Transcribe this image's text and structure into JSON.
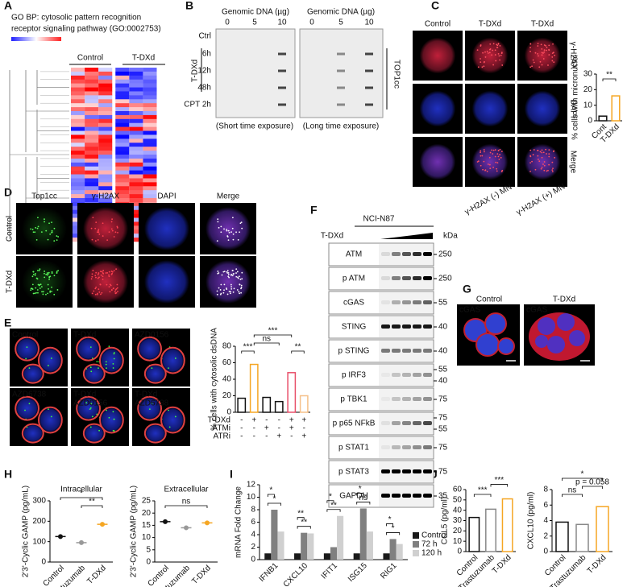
{
  "panel_A": {
    "label": "A",
    "title_lines": [
      "GO BP: cytosolic pattern recognition",
      "receptor signaling pathway (GO:0002753)"
    ],
    "groups": [
      "Control",
      "T-DXd"
    ]
  },
  "panel_B": {
    "label": "B",
    "headers": [
      "Genomic DNA (µg)",
      "Genomic DNA (µg)"
    ],
    "lanes": [
      0,
      5,
      10,
      0,
      5,
      10
    ],
    "rows": [
      "Ctrl",
      "6h",
      "12h",
      "48h",
      "CPT 2h"
    ],
    "group": "T-DXd",
    "target": "TOP1cc",
    "captions": [
      "(Short time exposure)",
      "(Long time exposure)"
    ]
  },
  "panel_C": {
    "label": "C",
    "columns": [
      "Control",
      "T-DXd",
      "T-DXd"
    ],
    "channels": [
      "γ-H2AX",
      "DAPI",
      "Merge"
    ],
    "subcaptions": [
      "γ-H2AX (-) MN",
      "γ-H2AX (+) MN"
    ]
  },
  "panel_D": {
    "label": "D",
    "channels": [
      "Top1cc",
      "γ-H2AX",
      "DAPI",
      "Merge"
    ],
    "rows": [
      "Control",
      "T-DXd"
    ]
  },
  "panel_E": {
    "label": "E",
    "images": [
      [
        "Control"
      ],
      [
        "T-DXd"
      ],
      [
        "AZD0156"
      ],
      [
        "AZD6738"
      ],
      [
        "T-DXd",
        "AZD0156"
      ],
      [
        "T-DXd",
        "AZD6738"
      ]
    ]
  },
  "panel_F": {
    "label": "F",
    "cell_line": "NCI-N87",
    "treatment": "T-DXd",
    "unit": "kDa",
    "rows": [
      {
        "name": "ATM",
        "markers": [
          250
        ]
      },
      {
        "name": "p ATM",
        "markers": [
          250
        ]
      },
      {
        "name": "cGAS",
        "markers": [
          55
        ]
      },
      {
        "name": "STING",
        "markers": [
          40
        ]
      },
      {
        "name": "p STING",
        "markers": [
          40
        ]
      },
      {
        "name": "p IRF3",
        "markers": [
          55,
          40
        ]
      },
      {
        "name": "p TBK1",
        "markers": [
          75
        ]
      },
      {
        "name": "p p65 NFkB",
        "markers": [
          75,
          55
        ]
      },
      {
        "name": "p STAT1",
        "markers": [
          75
        ]
      },
      {
        "name": "p STAT3",
        "markers": [
          75
        ]
      },
      {
        "name": "GAPDH",
        "markers": [
          35
        ]
      }
    ]
  },
  "panel_G": {
    "label": "G",
    "columns": [
      "Control",
      "T-DXd"
    ],
    "stain": "cGAS"
  },
  "panel_H": {
    "label": "H"
  },
  "panel_I": {
    "label": "I"
  },
  "panel_J": {
    "label": "J"
  },
  "chart_data": [
    {
      "type": "bar",
      "ylabel": "% cells with micronuclei",
      "categories": [
        "Cont",
        "T-DXd"
      ],
      "values": [
        3,
        16
      ],
      "colors": [
        "#111111",
        "#f5a623"
      ],
      "ylim": [
        0,
        30
      ],
      "yticks": [
        0,
        10,
        20,
        30
      ],
      "significance": [
        "**"
      ]
    },
    {
      "type": "bar",
      "ylabel": "% cells with cytosolic dsDNA",
      "values": [
        17,
        58,
        18,
        13,
        48,
        20
      ],
      "colors": [
        "#111111",
        "#f5a623",
        "#111111",
        "#111111",
        "#e8506a",
        "#f5c089"
      ],
      "ylim": [
        0,
        80
      ],
      "yticks": [
        0,
        20,
        40,
        60,
        80
      ],
      "treatments": [
        {
          "name": "T-DXd",
          "signs": [
            "-",
            "+",
            "-",
            "-",
            "+",
            "+"
          ]
        },
        {
          "name": "ATMi",
          "signs": [
            "-",
            "-",
            "+",
            "-",
            "+",
            "-"
          ]
        },
        {
          "name": "ATRi",
          "signs": [
            "-",
            "-",
            "-",
            "+",
            "-",
            "+"
          ]
        }
      ],
      "significance": [
        "***",
        "ns",
        "***",
        "**"
      ]
    },
    {
      "type": "dot",
      "title": "Intracellular",
      "ylabel": "2'3'-Cyclic GAMP (pg/mL)",
      "categories": [
        "Control",
        "Trastuzumab",
        "T-DXd"
      ],
      "values": [
        125,
        95,
        185
      ],
      "colors": [
        "#111111",
        "#999999",
        "#f5a623"
      ],
      "ylim": [
        0,
        300
      ],
      "yticks": [
        0,
        100,
        200,
        300
      ],
      "significance": [
        "*",
        "**"
      ]
    },
    {
      "type": "dot",
      "title": "Extracellular",
      "ylabel": "2'3'-Cyclic GAMP (pg/mL)",
      "categories": [
        "Control",
        "Trastuzumab",
        "T-DXd"
      ],
      "values": [
        16.5,
        14,
        16
      ],
      "colors": [
        "#111111",
        "#999999",
        "#f5a623"
      ],
      "ylim": [
        0,
        25
      ],
      "yticks": [
        0,
        5,
        10,
        15,
        20,
        25
      ],
      "significance": [
        "ns"
      ]
    },
    {
      "type": "grouped_bar",
      "ylabel": "mRNA Fold Change",
      "categories": [
        "IFNB1",
        "CXCL10",
        "IFIT1",
        "ISG15",
        "RIG1"
      ],
      "series": [
        {
          "name": "Control",
          "color": "#1a1a1a",
          "values": [
            1,
            1,
            1,
            1,
            1
          ]
        },
        {
          "name": "72 h",
          "color": "#808080",
          "values": [
            8,
            4.3,
            2,
            8.2,
            3.3
          ]
        },
        {
          "name": "120 h",
          "color": "#d0d0d0",
          "values": [
            4.5,
            4.2,
            7,
            4.5,
            2.5
          ]
        }
      ],
      "ylim": [
        0,
        12
      ],
      "yticks": [
        0,
        2,
        4,
        6,
        8,
        10,
        12
      ],
      "legend": "right",
      "significance": [
        "*",
        "*",
        "**",
        "**",
        "*",
        "**",
        "*",
        "ns",
        "*",
        "*"
      ]
    },
    {
      "type": "bar",
      "ylabel": "CCL5 (pg/ml)",
      "categories": [
        "Control",
        "Trastuzumab",
        "T-DXd"
      ],
      "values": [
        33,
        41,
        51
      ],
      "colors": [
        "#111111",
        "#888888",
        "#f5a623"
      ],
      "ylim": [
        0,
        60
      ],
      "yticks": [
        0,
        10,
        20,
        30,
        40,
        50,
        60
      ],
      "significance": [
        "***",
        "***"
      ]
    },
    {
      "type": "bar",
      "ylabel": "CXCL10 (pg/ml)",
      "categories": [
        "Control",
        "Trastuzumab",
        "T-DXd"
      ],
      "values": [
        3.8,
        3.5,
        5.8
      ],
      "colors": [
        "#111111",
        "#888888",
        "#f5a623"
      ],
      "ylim": [
        0,
        8
      ],
      "yticks": [
        0,
        2,
        4,
        6,
        8
      ],
      "significance": [
        "ns",
        "p = 0.058",
        "*"
      ]
    }
  ]
}
